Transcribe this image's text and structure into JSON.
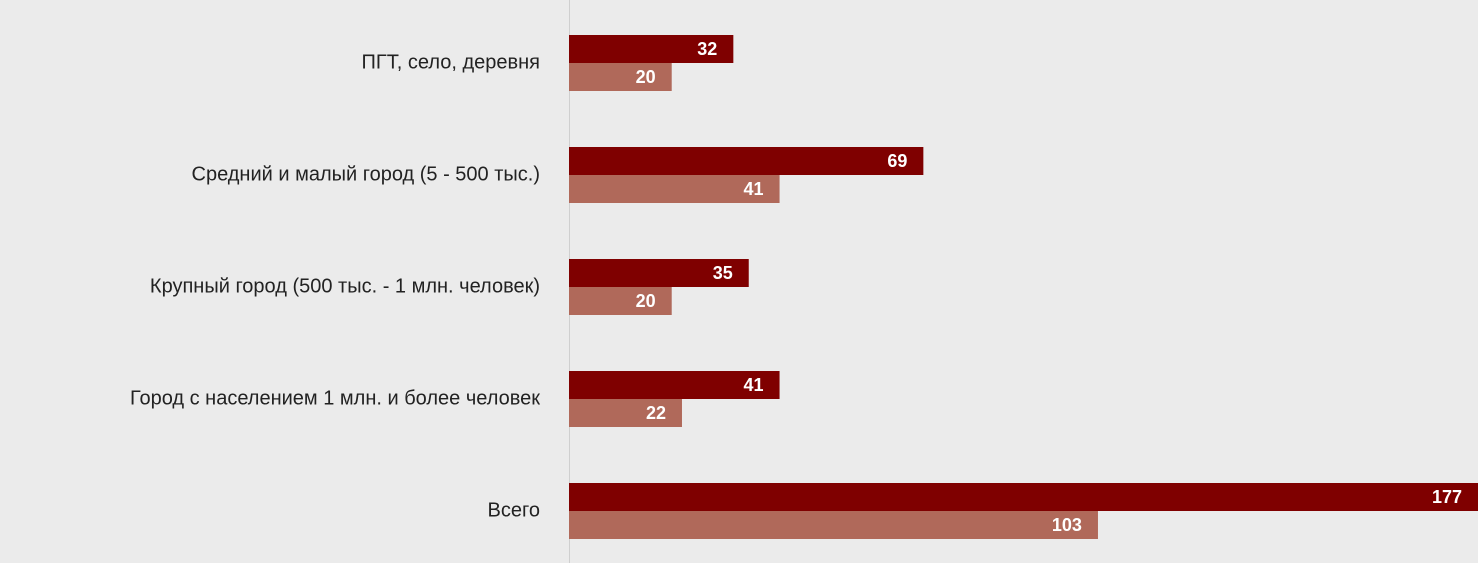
{
  "chart_data": {
    "type": "bar",
    "orientation": "horizontal",
    "categories": [
      "ПГТ, село, деревня",
      "Средний и малый город (5 - 500 тыс.)",
      "Крупный  город (500 тыс. - 1 млн. человек)",
      "Город с населением 1 млн. и более человек",
      "Всего"
    ],
    "series": [
      {
        "color": "#7f0000",
        "values": [
          32,
          69,
          35,
          41,
          177
        ]
      },
      {
        "color": "#b0695a",
        "values": [
          20,
          41,
          20,
          22,
          103
        ]
      }
    ]
  }
}
